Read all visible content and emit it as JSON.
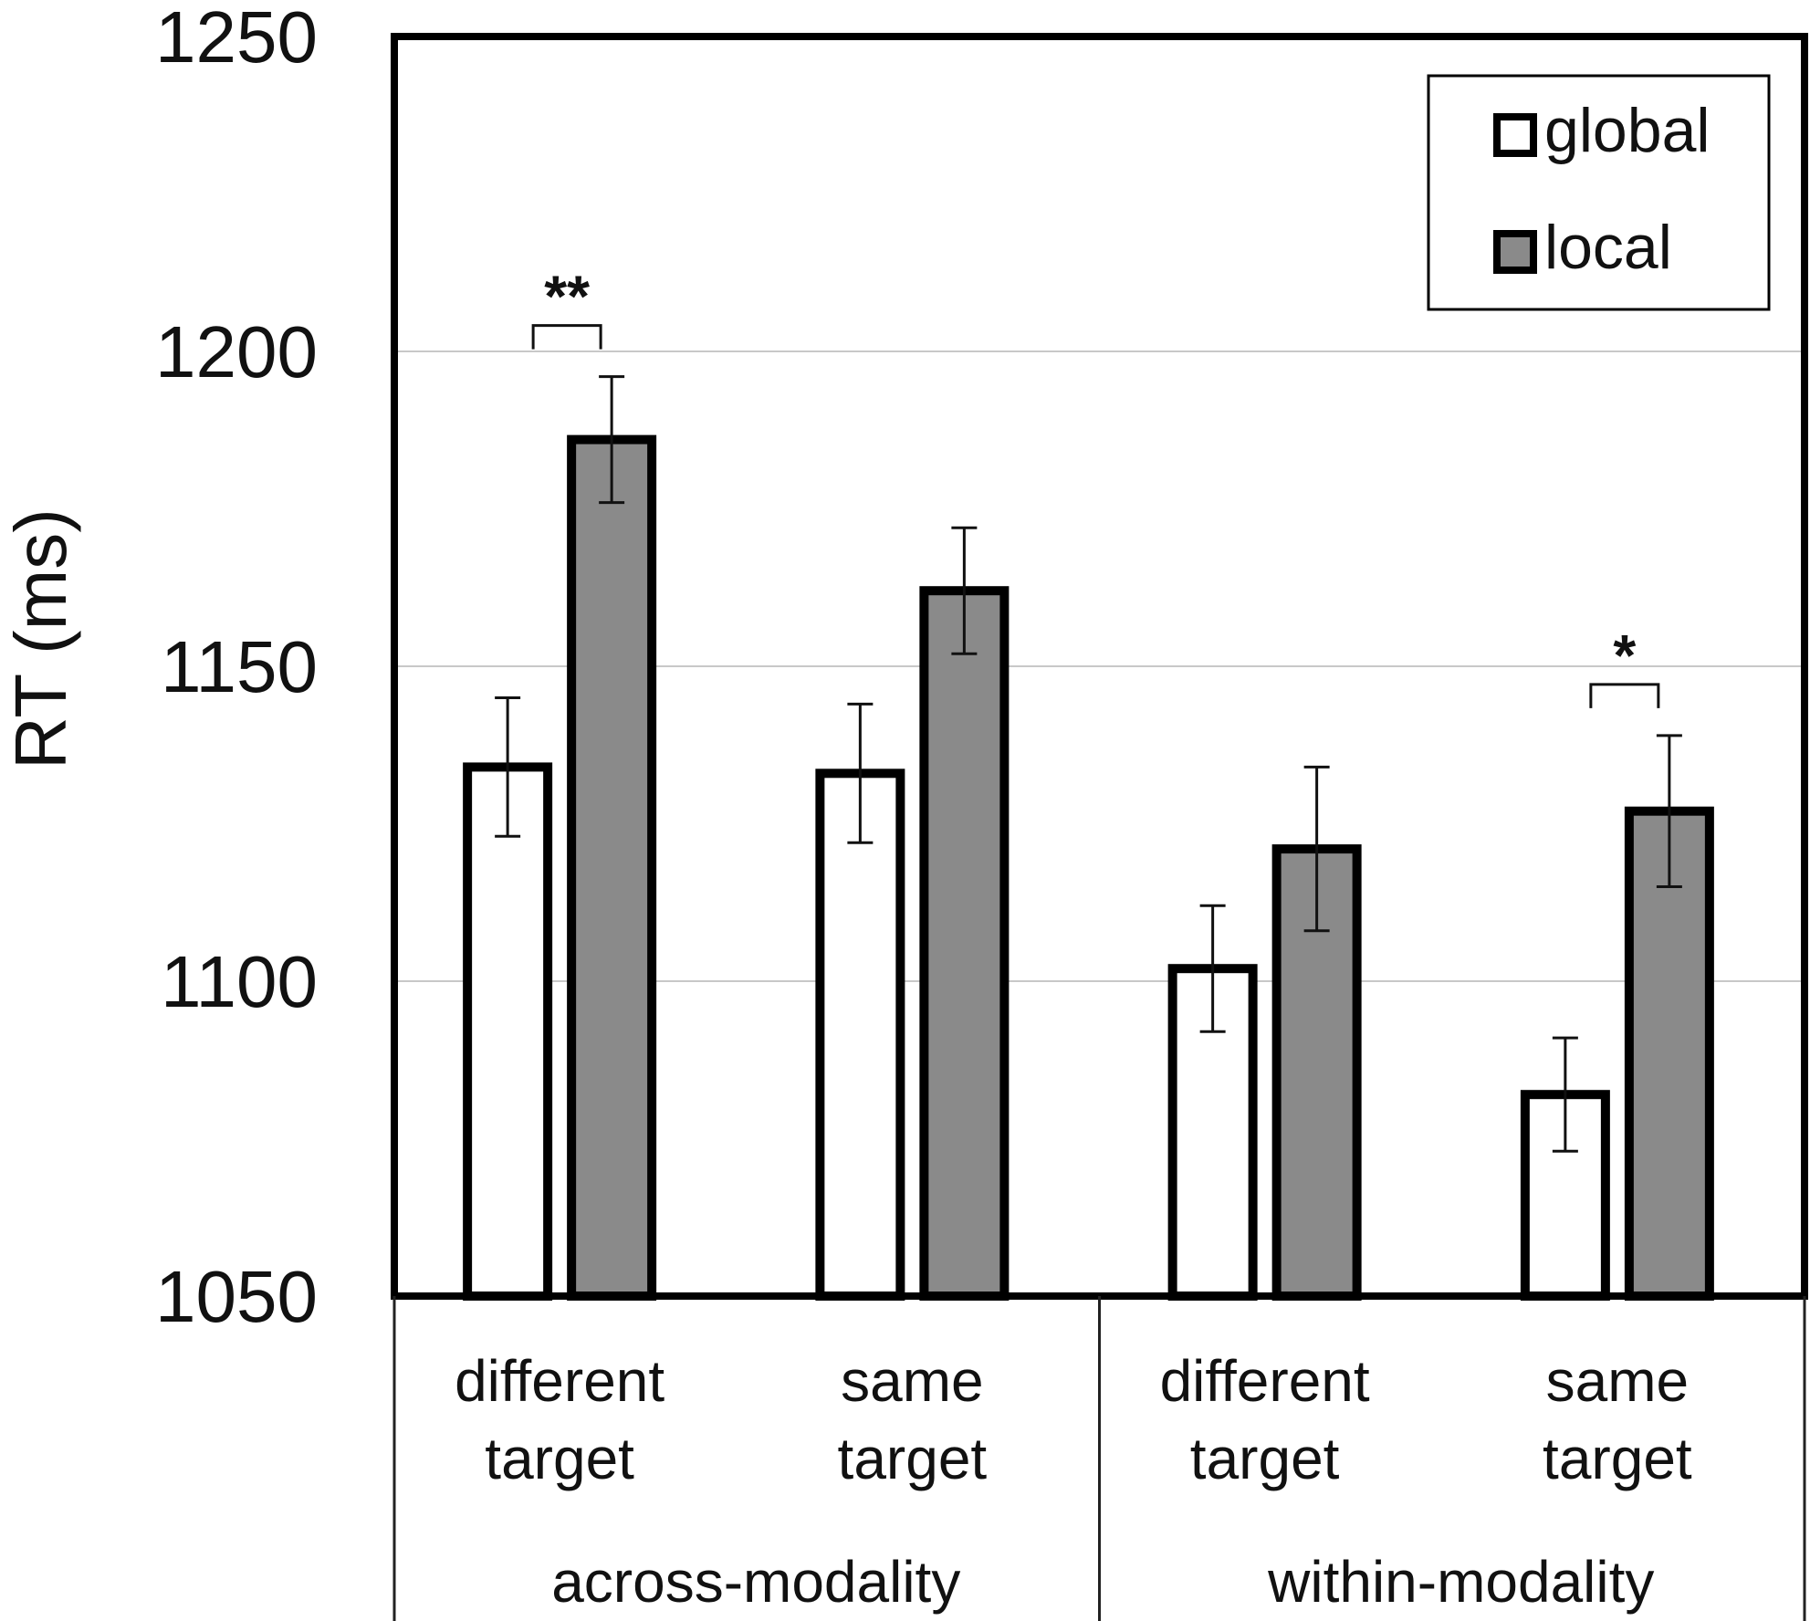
{
  "chart_data": {
    "type": "bar",
    "title": "",
    "xlabel": "",
    "ylabel": "RT (ms)",
    "ylim": [
      1050,
      1250
    ],
    "yticks": [
      1050,
      1100,
      1150,
      1200,
      1250
    ],
    "grid": true,
    "legend_position": "top-right",
    "categories": [
      {
        "line1": "different",
        "line2": "target"
      },
      {
        "line1": "same",
        "line2": "target"
      },
      {
        "line1": "different",
        "line2": "target"
      },
      {
        "line1": "same",
        "line2": "target"
      }
    ],
    "groups": [
      {
        "label": "across-modality",
        "categories": [
          0,
          1
        ]
      },
      {
        "label": "within-modality",
        "categories": [
          2,
          3
        ]
      }
    ],
    "series": [
      {
        "name": "global",
        "color": "#ffffff",
        "values": [
          1134,
          1133,
          1102,
          1082
        ],
        "errors": [
          11,
          11,
          10,
          9
        ]
      },
      {
        "name": "local",
        "color": "#8a8a8a",
        "values": [
          1186,
          1162,
          1121,
          1127
        ],
        "errors": [
          10,
          10,
          13,
          12
        ]
      }
    ],
    "annotations": [
      {
        "text": "**",
        "category": 0
      },
      {
        "text": "*",
        "category": 3
      }
    ]
  }
}
